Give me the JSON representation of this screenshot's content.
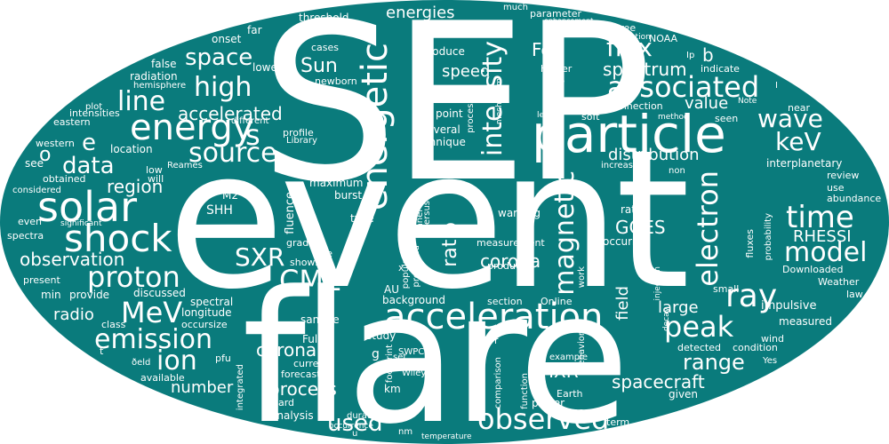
{
  "colors": {
    "oval": "#0a7b7c",
    "text": "#ffffff",
    "page": "#ffffff"
  },
  "words": [
    "SEP",
    "event",
    "flare",
    "particle",
    "energetic",
    "acceleration",
    "solar",
    "energy",
    "shock",
    "associated",
    "intensity",
    "proton",
    "ray",
    "source",
    "spectrum",
    "flux",
    "magnetic",
    "electron",
    "observed",
    "emission",
    "time",
    "peak",
    "wave",
    "MeV",
    "model",
    "CME",
    "ion",
    "high",
    "line",
    "data",
    "keV",
    "space",
    "ratio",
    "range",
    "SXR",
    "accelerated",
    "used",
    "region",
    "observation",
    "distribution",
    "speed",
    "Sun",
    "Fe",
    "coronal",
    "process",
    "radio",
    "spacecraft",
    "large",
    "field",
    "corona",
    "GOES",
    "RHESSI",
    "HXR",
    "energies",
    "value",
    "number",
    "e",
    "b",
    "o",
    "s",
    "SHH",
    "M2",
    "burst",
    "fluence",
    "type",
    "warning",
    "rate",
    "occurred",
    "measurement",
    "produced",
    "sample",
    "study",
    "Full",
    "detected",
    "condition",
    "impulsive",
    "measured",
    "background",
    "section",
    "Online",
    "AU",
    "longitude",
    "spectral",
    "occursize",
    "class",
    "min",
    "provide",
    "discussed",
    "present",
    "spectra",
    "even",
    "considered",
    "obtained",
    "see",
    "western",
    "eastern",
    "intensities",
    "plot",
    "radiation",
    "hemisphere",
    "false",
    "onset",
    "lower",
    "far",
    "threshold",
    "cases",
    "newborn",
    "produce",
    "point",
    "several",
    "technique",
    "processes",
    "mechanism",
    "profile",
    "Library",
    "different",
    "location",
    "low",
    "Reames",
    "will",
    "maximum",
    "gradual",
    "rise",
    "shows",
    "population",
    "predicted",
    "versus",
    "panel",
    "Wiley",
    "nuc",
    "sheet",
    "increase",
    "non",
    "interplanetary",
    "review",
    "use",
    "abundance",
    "fluxes",
    "probability",
    "Downloaded",
    "small",
    "Weather",
    "law",
    "injection",
    "work",
    "decay",
    "wind",
    "Yes",
    "given",
    "power",
    "Earth",
    "many",
    "term",
    "behavior",
    "example",
    "function",
    "comparison",
    "plasma",
    "N",
    "temperature",
    "nm",
    "footprint",
    "SWPC",
    "set",
    "g",
    "km",
    "current",
    "forecast",
    "hard",
    "analysis",
    "duration",
    "occurrence",
    "integrated",
    "available",
    "pfu",
    "t",
    "ðeld",
    "significant",
    "much",
    "enhancement",
    "parameter",
    "three",
    "variation",
    "NOAA",
    "Ip",
    "indicate",
    "higher",
    "loop",
    "reconnection",
    "soft",
    "level",
    "method",
    "seen",
    "Note",
    "near",
    "I",
    "P",
    "f",
    "r",
    "x",
    "u"
  ]
}
